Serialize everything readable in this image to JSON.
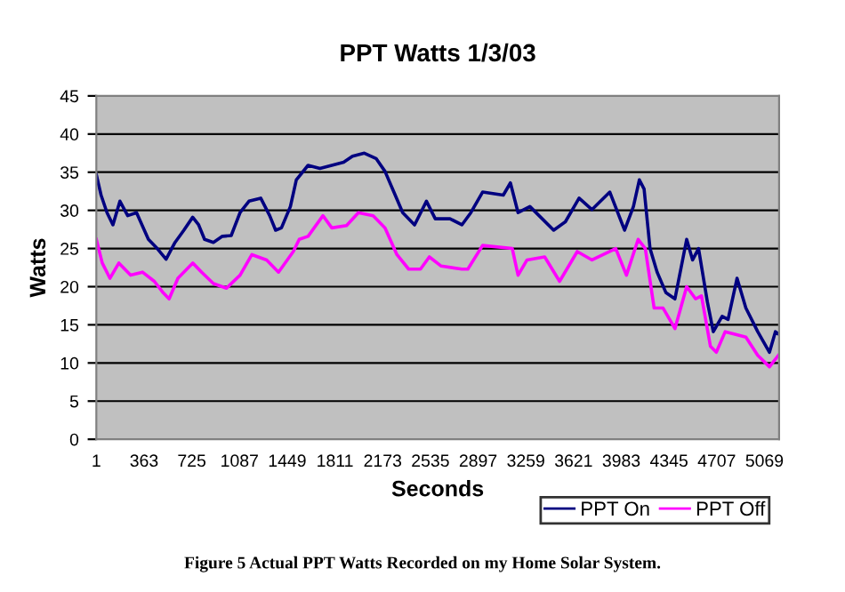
{
  "chart_data": {
    "type": "line",
    "title": "PPT Watts 1/3/03",
    "xlabel": "Seconds",
    "ylabel": "Watts",
    "annotations": [
      "Figure 5 Actual PPT Watts Recorded on my Home Solar System."
    ],
    "xlim": [
      1,
      5180
    ],
    "xticks": [
      1,
      363,
      725,
      1087,
      1449,
      1811,
      2173,
      2535,
      2897,
      3259,
      3621,
      3983,
      4345,
      4707,
      5069
    ],
    "ylim": [
      0,
      45
    ],
    "yticks": [
      0,
      5,
      10,
      15,
      20,
      25,
      30,
      35,
      40,
      45
    ],
    "grid": "y",
    "legend": "bottom right",
    "marker": "none",
    "line_style": "solid",
    "series": [
      {
        "name": "PPT On",
        "color": "#000080",
        "x": [
          1,
          37,
          82,
          127,
          180,
          239,
          306,
          396,
          463,
          530,
          598,
          665,
          732,
          777,
          822,
          889,
          957,
          1024,
          1091,
          1159,
          1248,
          1316,
          1361,
          1405,
          1473,
          1518,
          1607,
          1697,
          1787,
          1877,
          1944,
          2034,
          2123,
          2191,
          2258,
          2325,
          2415,
          2505,
          2572,
          2640,
          2684,
          2774,
          2842,
          2931,
          3088,
          3142,
          3200,
          3290,
          3470,
          3559,
          3663,
          3761,
          3896,
          4008,
          4075,
          4120,
          4156,
          4201,
          4255,
          4322,
          4390,
          4479,
          4524,
          4569,
          4636,
          4681,
          4748,
          4793,
          4861,
          4928,
          5018,
          5107,
          5152,
          5175
        ],
        "values": [
          34.7,
          32,
          29.7,
          28.1,
          31.2,
          29.3,
          29.7,
          26.2,
          25,
          23.6,
          25.8,
          27.4,
          29.1,
          28.1,
          26.2,
          25.8,
          26.6,
          26.7,
          29.7,
          31.2,
          31.6,
          29.3,
          27.4,
          27.7,
          30.5,
          34,
          35.9,
          35.5,
          35.9,
          36.3,
          37.1,
          37.5,
          36.8,
          35.1,
          32.4,
          29.7,
          28.1,
          31.2,
          28.9,
          28.9,
          28.9,
          28.1,
          29.7,
          32.4,
          32,
          33.6,
          29.7,
          30.5,
          27.4,
          28.5,
          31.6,
          30.1,
          32.4,
          27.4,
          30.5,
          34,
          32.8,
          25,
          21.9,
          19.2,
          18.4,
          26.2,
          23.5,
          25,
          18,
          14.1,
          16.1,
          15.7,
          21.1,
          17.2,
          14.1,
          11.4,
          14.1,
          13.8
        ]
      },
      {
        "name": "PPT Off",
        "color": "#ff00ff",
        "x": [
          1,
          46,
          104,
          172,
          261,
          351,
          441,
          508,
          553,
          620,
          732,
          800,
          889,
          988,
          1091,
          1181,
          1293,
          1383,
          1495,
          1540,
          1607,
          1720,
          1787,
          1899,
          1989,
          2101,
          2191,
          2281,
          2370,
          2460,
          2527,
          2617,
          2774,
          2819,
          2931,
          3156,
          3200,
          3268,
          3402,
          3515,
          3649,
          3761,
          3941,
          4022,
          4111,
          4165,
          4232,
          4300,
          4390,
          4479,
          4547,
          4591,
          4659,
          4704,
          4771,
          4838,
          4928,
          5018,
          5107,
          5175
        ],
        "values": [
          26.2,
          23.1,
          21.1,
          23.1,
          21.5,
          21.9,
          20.7,
          19.2,
          18.4,
          21.1,
          23.1,
          21.9,
          20.4,
          19.8,
          21.5,
          24.2,
          23.5,
          21.9,
          24.6,
          26.2,
          26.6,
          29.3,
          27.7,
          28,
          29.7,
          29.3,
          27.7,
          24.2,
          22.3,
          22.3,
          23.9,
          22.7,
          22.3,
          22.3,
          25.4,
          25,
          21.5,
          23.5,
          23.9,
          20.7,
          24.6,
          23.5,
          25,
          21.5,
          26.2,
          25,
          17.2,
          17.2,
          14.5,
          20,
          18.4,
          18.8,
          12.2,
          11.4,
          14.1,
          13.8,
          13.4,
          11,
          9.5,
          11
        ]
      }
    ]
  }
}
